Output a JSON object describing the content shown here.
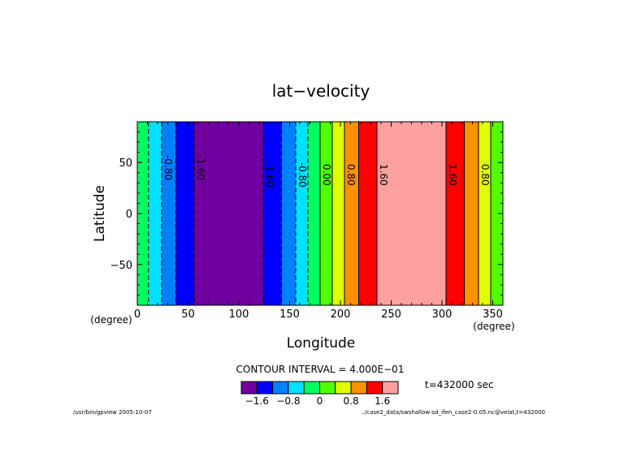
{
  "chart_data": {
    "type": "heatmap",
    "title": "lat−velocity",
    "xlabel": "Longitude",
    "ylabel": "Latitude",
    "x_unit": "(degree)",
    "y_unit": "(degree)",
    "xlim": [
      0,
      360
    ],
    "ylim": [
      -90,
      90
    ],
    "x_ticks": [
      {
        "v": 0,
        "label": "0"
      },
      {
        "v": 50,
        "label": "50"
      },
      {
        "v": 100,
        "label": "100"
      },
      {
        "v": 150,
        "label": "150"
      },
      {
        "v": 200,
        "label": "200"
      },
      {
        "v": 250,
        "label": "250"
      },
      {
        "v": 300,
        "label": "300"
      },
      {
        "v": 350,
        "label": "350"
      }
    ],
    "y_ticks": [
      {
        "v": 50,
        "label": "50"
      },
      {
        "v": 0,
        "label": "0"
      },
      {
        "v": -50,
        "label": "−50"
      }
    ],
    "levels": [
      -2.0,
      -1.6,
      -1.2,
      -0.8,
      -0.4,
      0.0,
      0.4,
      0.8,
      1.2,
      1.6,
      2.0
    ],
    "level_colors": [
      "#7000a0",
      "#0000ff",
      "#0080ff",
      "#00e0ff",
      "#00ff60",
      "#50ff00",
      "#e0ff00",
      "#ff9000",
      "#ff0000",
      "#ffa0a0"
    ],
    "bands": [
      {
        "x0": 0,
        "x1": 11,
        "color": "#00ff60"
      },
      {
        "x0": 11,
        "x1": 24,
        "color": "#00e0ff"
      },
      {
        "x0": 24,
        "x1": 38,
        "color": "#0080ff"
      },
      {
        "x0": 38,
        "x1": 56,
        "color": "#0000ff"
      },
      {
        "x0": 56,
        "x1": 124,
        "color": "#7000a0"
      },
      {
        "x0": 124,
        "x1": 142,
        "color": "#0000ff"
      },
      {
        "x0": 142,
        "x1": 156,
        "color": "#0080ff"
      },
      {
        "x0": 156,
        "x1": 168,
        "color": "#00e0ff"
      },
      {
        "x0": 168,
        "x1": 180,
        "color": "#00ff60"
      },
      {
        "x0": 180,
        "x1": 192,
        "color": "#50ff00"
      },
      {
        "x0": 192,
        "x1": 204,
        "color": "#e0ff00"
      },
      {
        "x0": 204,
        "x1": 218,
        "color": "#ff9000"
      },
      {
        "x0": 218,
        "x1": 236,
        "color": "#ff0000"
      },
      {
        "x0": 236,
        "x1": 304,
        "color": "#ffa0a0"
      },
      {
        "x0": 304,
        "x1": 322,
        "color": "#ff0000"
      },
      {
        "x0": 322,
        "x1": 336,
        "color": "#ff9000"
      },
      {
        "x0": 336,
        "x1": 348,
        "color": "#e0ff00"
      },
      {
        "x0": 348,
        "x1": 360,
        "color": "#50ff00"
      }
    ],
    "contour_lines": [
      {
        "x": 11,
        "dashed": true
      },
      {
        "x": 24,
        "dashed": true
      },
      {
        "x": 38,
        "dashed": true
      },
      {
        "x": 56,
        "dashed": true
      },
      {
        "x": 124,
        "dashed": true
      },
      {
        "x": 142,
        "dashed": true
      },
      {
        "x": 156,
        "dashed": true
      },
      {
        "x": 168,
        "dashed": true
      },
      {
        "x": 180,
        "dashed": false
      },
      {
        "x": 192,
        "dashed": false
      },
      {
        "x": 204,
        "dashed": false
      },
      {
        "x": 218,
        "dashed": false
      },
      {
        "x": 236,
        "dashed": false
      },
      {
        "x": 304,
        "dashed": false
      },
      {
        "x": 322,
        "dashed": false
      },
      {
        "x": 336,
        "dashed": false
      },
      {
        "x": 348,
        "dashed": false
      }
    ],
    "contour_labels": [
      {
        "x": 24,
        "y": 45,
        "text": "-0.80"
      },
      {
        "x": 56,
        "y": 45,
        "text": "-1.60"
      },
      {
        "x": 124,
        "y": 38,
        "text": "-1.60"
      },
      {
        "x": 156,
        "y": 38,
        "text": "-0.80"
      },
      {
        "x": 180,
        "y": 38,
        "text": "0.00"
      },
      {
        "x": 204,
        "y": 38,
        "text": "0.80"
      },
      {
        "x": 236,
        "y": 38,
        "text": "1.60"
      },
      {
        "x": 304,
        "y": 38,
        "text": "1.60"
      },
      {
        "x": 336,
        "y": 38,
        "text": "0.80"
      }
    ],
    "contour_interval_text": "CONTOUR INTERVAL = 4.000E−01",
    "colorbar_ticks": [
      {
        "level": -1.6,
        "label": "−1.6"
      },
      {
        "level": -0.8,
        "label": "−0.8"
      },
      {
        "level": 0.0,
        "label": "0"
      },
      {
        "level": 0.8,
        "label": "0.8"
      },
      {
        "level": 1.6,
        "label": "1.6"
      }
    ],
    "time_text": "t=432000 sec",
    "footer_left": "/usr/bin/gpview  2005-10-07",
    "footer_right": "../case2_data/swshallow-sd_ifen_case2-0.05.nc@velat,t=432000"
  }
}
